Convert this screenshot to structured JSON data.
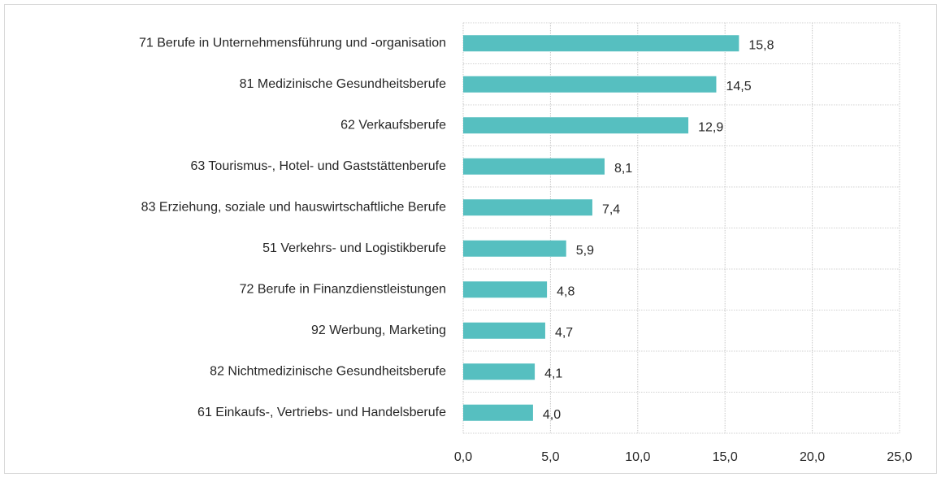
{
  "chart_data": {
    "type": "bar",
    "orientation": "horizontal",
    "categories": [
      "71 Berufe in Unternehmensführung und -organisation",
      "81 Medizinische Gesundheitsberufe",
      "62 Verkaufsberufe",
      "63 Tourismus-, Hotel- und Gaststättenberufe",
      "83 Erziehung, soziale und hauswirtschaftliche Berufe",
      "51 Verkehrs- und Logistikberufe",
      "72 Berufe in Finanzdienstleistungen",
      "92 Werbung, Marketing",
      "82 Nichtmedizinische Gesundheitsberufe",
      "61 Einkaufs-, Vertriebs- und Handelsberufe"
    ],
    "values": [
      15.8,
      14.5,
      12.9,
      8.1,
      7.4,
      5.9,
      4.8,
      4.7,
      4.1,
      4.0
    ],
    "value_labels": [
      "15,8",
      "14,5",
      "12,9",
      "8,1",
      "7,4",
      "5,9",
      "4,8",
      "4,7",
      "4,1",
      "4,0"
    ],
    "color": "#56bfc0",
    "xlim": [
      0,
      25
    ],
    "xticks": [
      {
        "value": 0,
        "label": "0,0"
      },
      {
        "value": 5,
        "label": "5,0"
      },
      {
        "value": 10,
        "label": "10,0"
      },
      {
        "value": 15,
        "label": "15,0"
      },
      {
        "value": 20,
        "label": "20,0"
      },
      {
        "value": 25,
        "label": "25,0"
      }
    ],
    "grid": true
  }
}
